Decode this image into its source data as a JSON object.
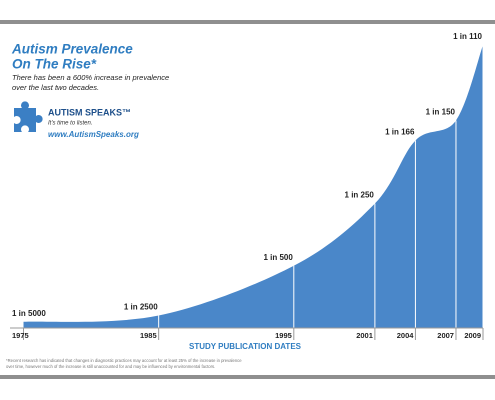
{
  "chart_data": {
    "type": "area",
    "title": [
      "Autism Prevalence",
      "On The Rise*"
    ],
    "subtitle": [
      "There has been a 600% increase in prevalence",
      "over the last two decades."
    ],
    "brand": "AUTISM SPEAKS™",
    "tagline": "It's time to listen.",
    "url": "www.AutismSpeaks.org",
    "x": [
      1975,
      1985,
      1995,
      2001,
      2004,
      2007,
      2009
    ],
    "values": [
      5000,
      2500,
      500,
      250,
      166,
      150,
      110
    ],
    "value_labels": [
      "1 in 5000",
      "1 in 2500",
      "1 in 500",
      "1 in 250",
      "1 in 166",
      "1 in 150",
      "1 in 110"
    ],
    "color": "#4a87c9",
    "xlim": [
      1974,
      2009
    ],
    "xticks": [
      1975,
      1985,
      1995,
      2001,
      2004,
      2007,
      2009
    ],
    "xlabel": "STUDY PUBLICATION DATES",
    "footnote": [
      "*Recent research has indicated that changes in diagnostic practices may account for at least 25% of the increase in prevalence",
      "over time, however much of the increase is still unaccounted for and may be influenced by environmental factors."
    ]
  }
}
